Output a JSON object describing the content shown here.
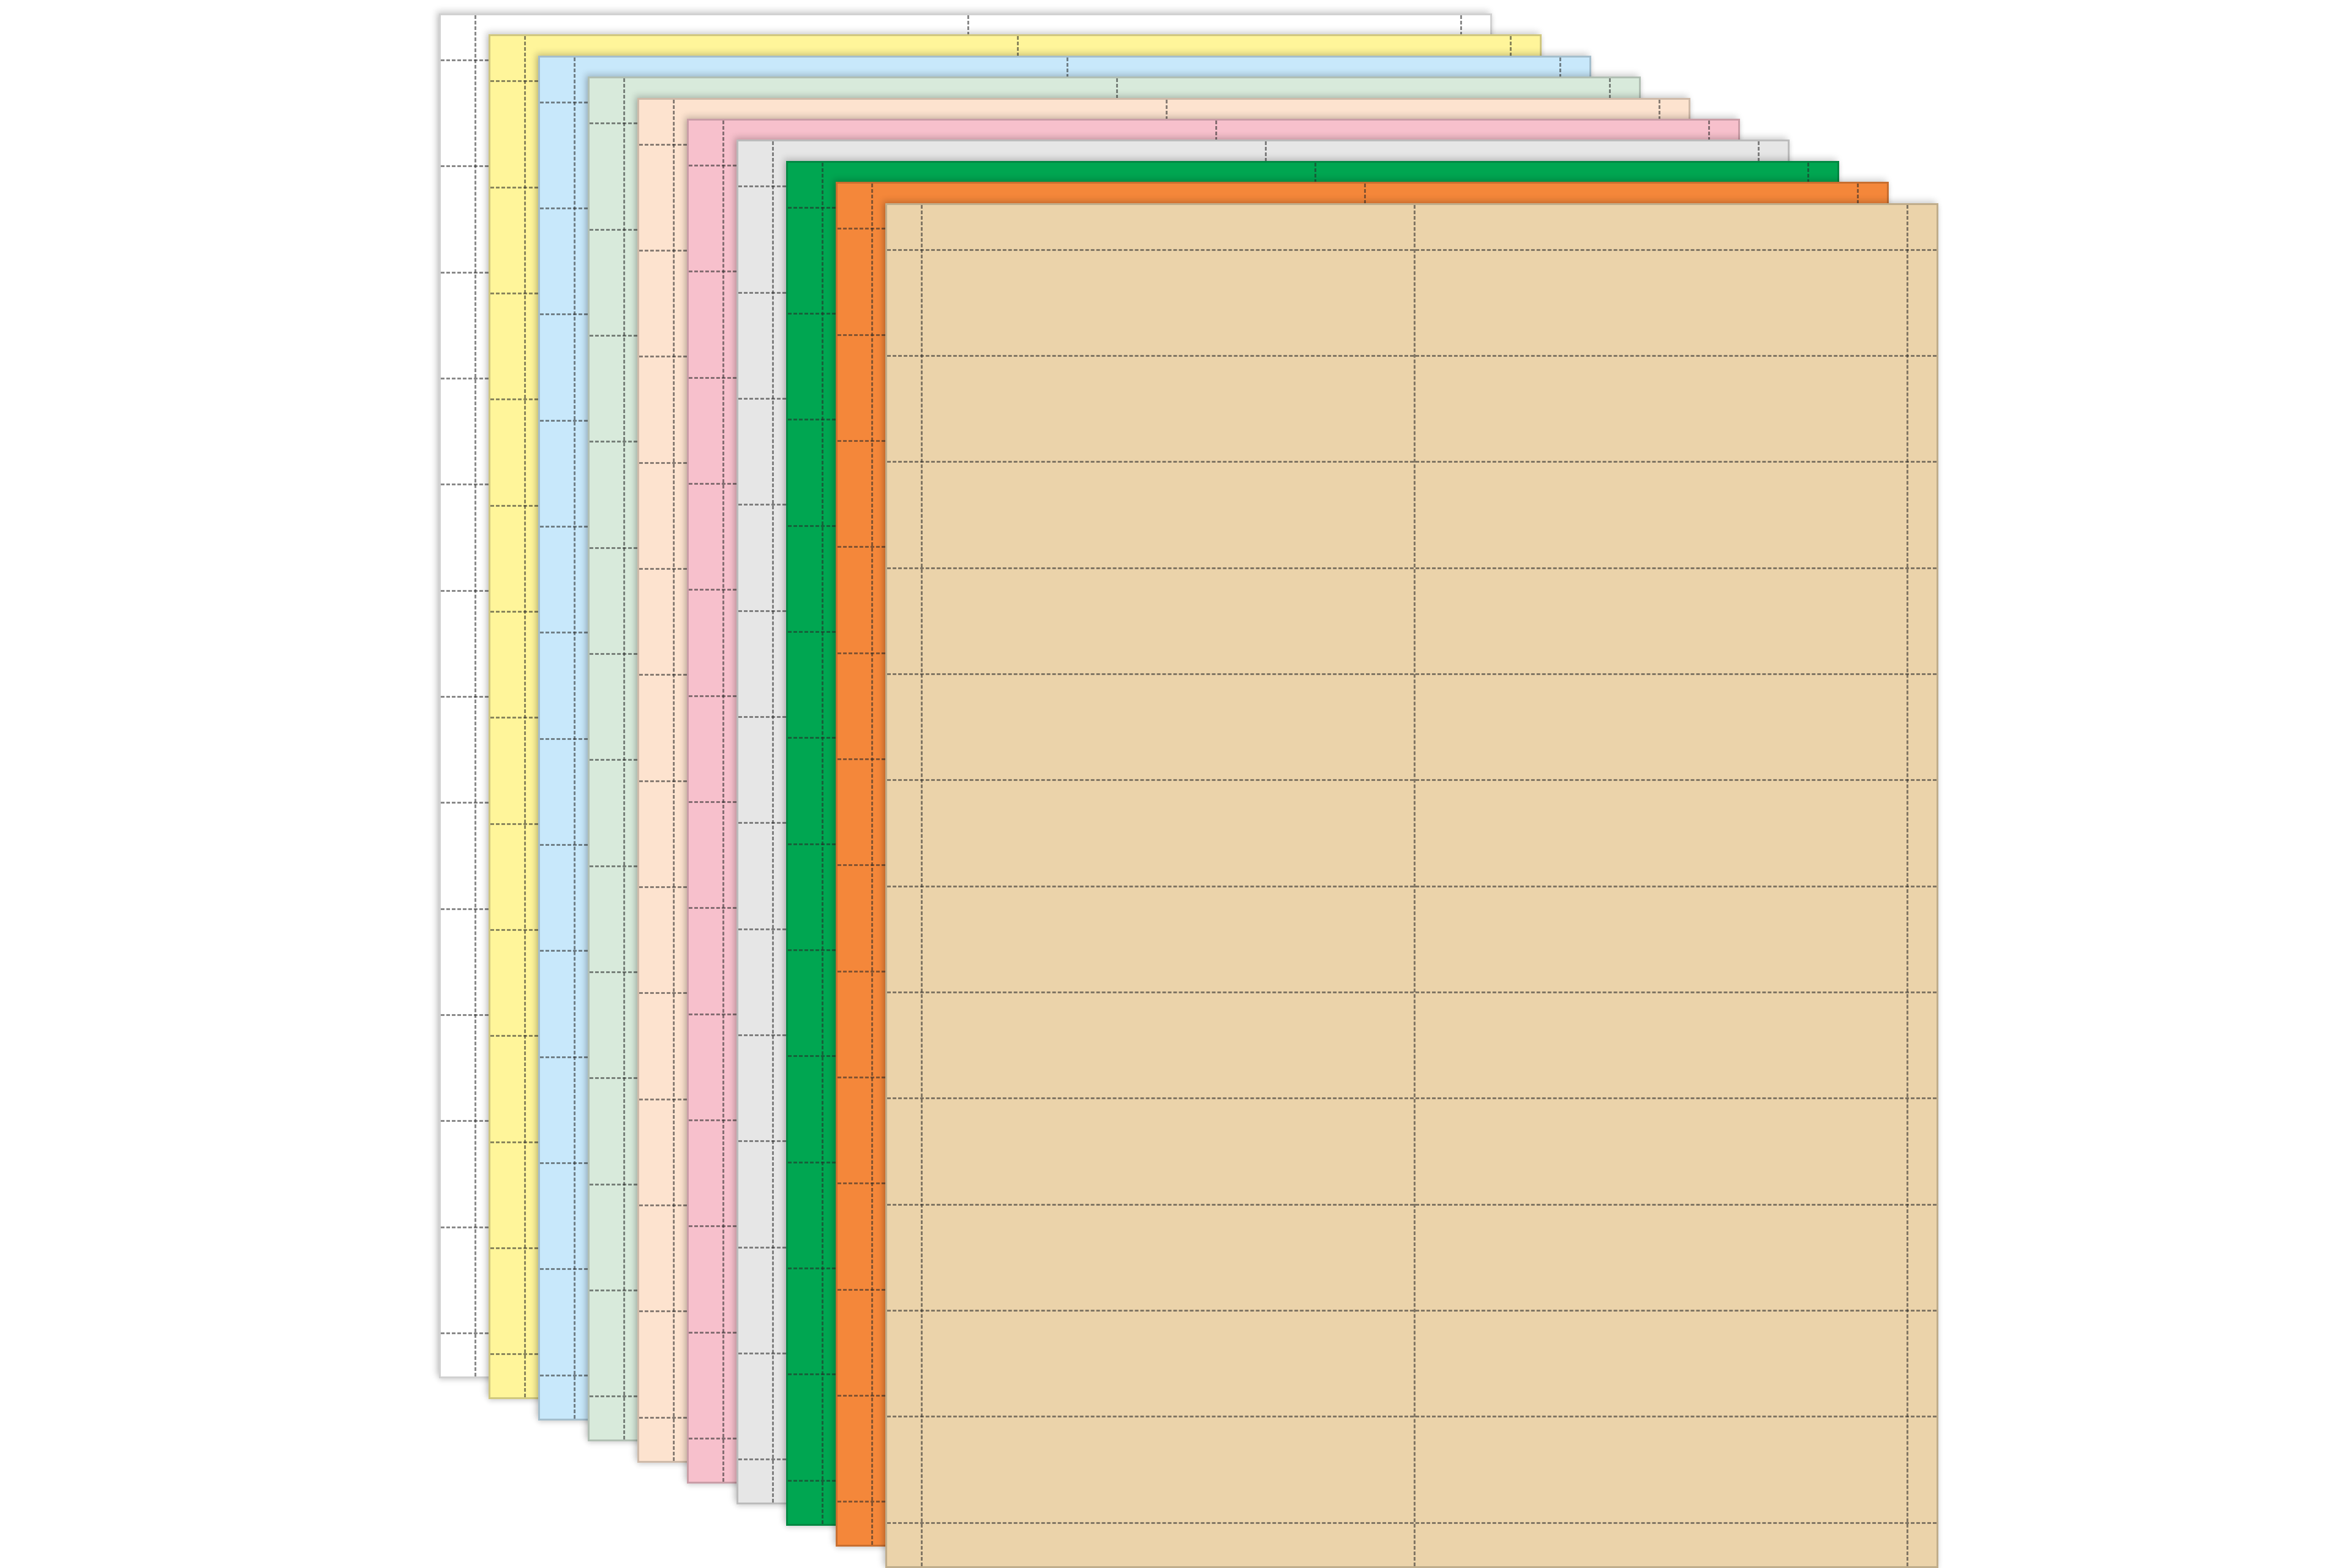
{
  "product": {
    "sheets": [
      {
        "name": "white",
        "color": "#ffffff"
      },
      {
        "name": "yellow",
        "color": "#fff59a"
      },
      {
        "name": "blue",
        "color": "#c8e8fb"
      },
      {
        "name": "light-green",
        "color": "#d8eadb"
      },
      {
        "name": "peach",
        "color": "#fde3cf"
      },
      {
        "name": "pink",
        "color": "#f7c0cc"
      },
      {
        "name": "gray",
        "color": "#e6e6e6"
      },
      {
        "name": "green",
        "color": "#00a651"
      },
      {
        "name": "orange",
        "color": "#f4873a"
      },
      {
        "name": "tan",
        "color": "#ebd3aa"
      }
    ],
    "label_columns": 2,
    "label_rows": 12
  }
}
